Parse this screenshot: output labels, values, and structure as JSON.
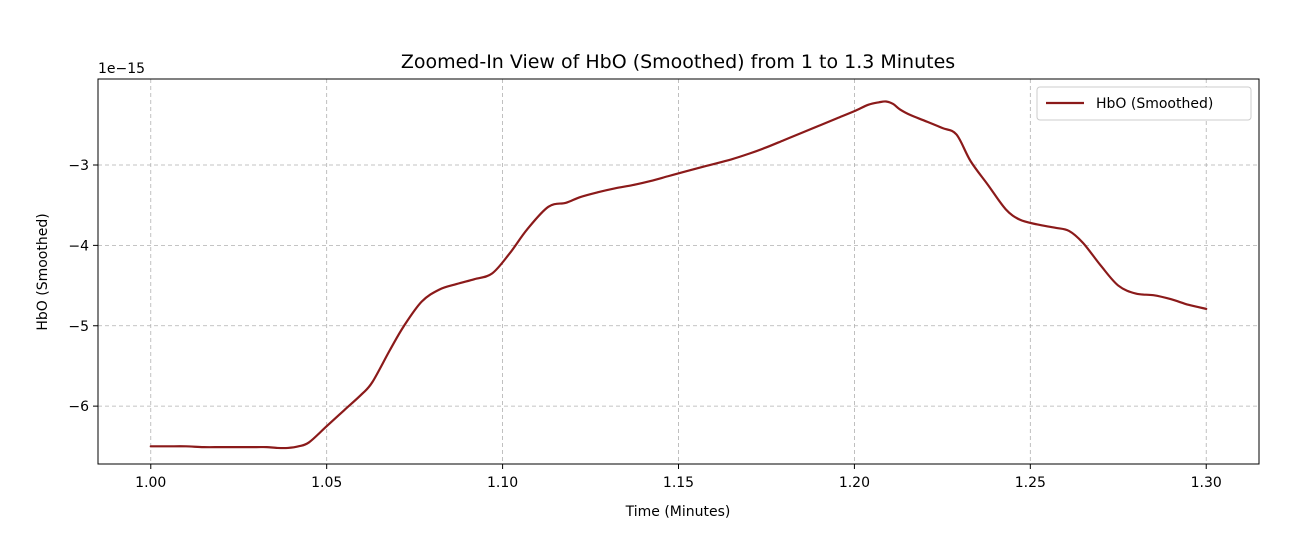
{
  "chart_data": {
    "type": "line",
    "title": "Zoomed-In View of HbO (Smoothed) from 1 to 1.3 Minutes",
    "xlabel": "Time (Minutes)",
    "ylabel": "HbO (Smoothed)",
    "y_offset_label": "1e−15",
    "xlim": [
      0.985,
      1.315
    ],
    "ylim": [
      -6.72,
      -1.93
    ],
    "x_ticks": [
      1.0,
      1.05,
      1.1,
      1.15,
      1.2,
      1.25,
      1.3
    ],
    "x_tick_labels": [
      "1.00",
      "1.05",
      "1.10",
      "1.15",
      "1.20",
      "1.25",
      "1.30"
    ],
    "y_ticks": [
      -6,
      -5,
      -4,
      -3
    ],
    "y_tick_labels": [
      "−6",
      "−5",
      "−4",
      "−3"
    ],
    "grid": true,
    "legend_position": "top-right",
    "series": [
      {
        "name": "HbO (Smoothed)",
        "color": "#8b1a1a",
        "x": [
          1.0,
          1.005,
          1.01,
          1.015,
          1.02,
          1.025,
          1.03,
          1.033,
          1.036,
          1.039,
          1.042,
          1.045,
          1.05,
          1.055,
          1.06,
          1.063,
          1.068,
          1.072,
          1.077,
          1.082,
          1.087,
          1.092,
          1.097,
          1.102,
          1.107,
          1.113,
          1.118,
          1.122,
          1.127,
          1.132,
          1.137,
          1.142,
          1.147,
          1.152,
          1.158,
          1.165,
          1.17,
          1.175,
          1.18,
          1.185,
          1.19,
          1.195,
          1.2,
          1.204,
          1.207,
          1.209,
          1.211,
          1.213,
          1.216,
          1.22,
          1.225,
          1.229,
          1.233,
          1.238,
          1.243,
          1.247,
          1.252,
          1.257,
          1.261,
          1.265,
          1.27,
          1.275,
          1.28,
          1.285,
          1.29,
          1.295,
          1.3
        ],
        "y": [
          -6.5,
          -6.5,
          -6.5,
          -6.51,
          -6.51,
          -6.51,
          -6.51,
          -6.51,
          -6.52,
          -6.52,
          -6.5,
          -6.45,
          -6.25,
          -6.05,
          -5.85,
          -5.7,
          -5.3,
          -5.0,
          -4.7,
          -4.55,
          -4.48,
          -4.42,
          -4.35,
          -4.1,
          -3.8,
          -3.52,
          -3.47,
          -3.4,
          -3.34,
          -3.29,
          -3.25,
          -3.2,
          -3.14,
          -3.08,
          -3.01,
          -2.93,
          -2.86,
          -2.78,
          -2.69,
          -2.6,
          -2.51,
          -2.42,
          -2.33,
          -2.25,
          -2.22,
          -2.21,
          -2.24,
          -2.31,
          -2.38,
          -2.45,
          -2.54,
          -2.62,
          -2.95,
          -3.25,
          -3.55,
          -3.68,
          -3.74,
          -3.78,
          -3.82,
          -3.97,
          -4.25,
          -4.5,
          -4.6,
          -4.62,
          -4.67,
          -4.74,
          -4.79
        ]
      }
    ]
  }
}
